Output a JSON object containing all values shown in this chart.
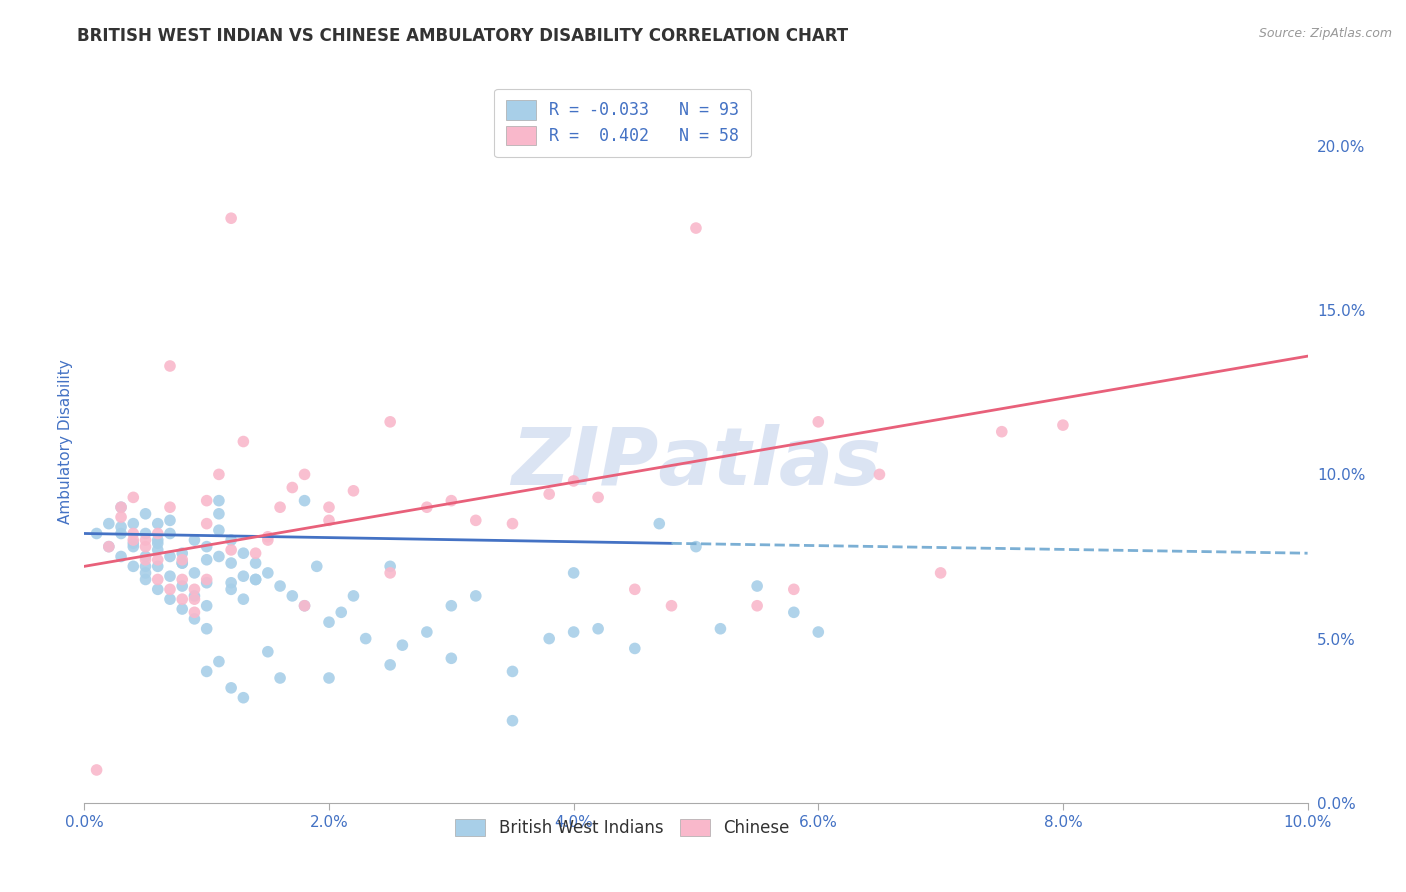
{
  "title": "BRITISH WEST INDIAN VS CHINESE AMBULATORY DISABILITY CORRELATION CHART",
  "source_text": "Source: ZipAtlas.com",
  "ylabel": "Ambulatory Disability",
  "xlim": [
    0.0,
    0.1
  ],
  "ylim": [
    0.0,
    0.22
  ],
  "xtick_vals": [
    0.0,
    0.02,
    0.04,
    0.06,
    0.08,
    0.1
  ],
  "xtick_labels": [
    "0.0%",
    "2.0%",
    "4.0%",
    "6.0%",
    "8.0%",
    "10.0%"
  ],
  "ytick_vals": [
    0.0,
    0.05,
    0.1,
    0.15,
    0.2
  ],
  "ytick_labels_right": [
    "0.0%",
    "5.0%",
    "10.0%",
    "15.0%",
    "20.0%"
  ],
  "legend_label1": "R = -0.033   N = 93",
  "legend_label2": "R =  0.402   N = 58",
  "blue_scatter_color": "#a8cfe8",
  "pink_scatter_color": "#f9b8cb",
  "trend_blue_solid_color": "#4472c4",
  "trend_blue_dash_color": "#7bafd4",
  "trend_pink_color": "#e8607a",
  "background_color": "#ffffff",
  "grid_color": "#d0d0d0",
  "title_color": "#333333",
  "tick_color": "#4472c4",
  "watermark_color": "#cdd9ef",
  "blue_scatter_x": [
    0.001,
    0.002,
    0.002,
    0.003,
    0.003,
    0.004,
    0.004,
    0.004,
    0.005,
    0.005,
    0.005,
    0.005,
    0.006,
    0.006,
    0.006,
    0.006,
    0.007,
    0.007,
    0.007,
    0.007,
    0.008,
    0.008,
    0.008,
    0.009,
    0.009,
    0.009,
    0.01,
    0.01,
    0.01,
    0.01,
    0.011,
    0.011,
    0.011,
    0.012,
    0.012,
    0.012,
    0.013,
    0.013,
    0.014,
    0.014,
    0.015,
    0.016,
    0.017,
    0.018,
    0.019,
    0.02,
    0.021,
    0.022,
    0.023,
    0.025,
    0.026,
    0.028,
    0.03,
    0.032,
    0.035,
    0.038,
    0.04,
    0.042,
    0.045,
    0.047,
    0.05,
    0.052,
    0.055,
    0.058,
    0.06,
    0.003,
    0.004,
    0.005,
    0.006,
    0.007,
    0.008,
    0.009,
    0.01,
    0.011,
    0.012,
    0.013,
    0.014,
    0.003,
    0.005,
    0.006,
    0.008,
    0.01,
    0.011,
    0.012,
    0.013,
    0.015,
    0.016,
    0.018,
    0.02,
    0.025,
    0.03,
    0.035,
    0.04
  ],
  "blue_scatter_y": [
    0.082,
    0.078,
    0.085,
    0.075,
    0.082,
    0.072,
    0.079,
    0.085,
    0.068,
    0.075,
    0.082,
    0.088,
    0.065,
    0.072,
    0.079,
    0.085,
    0.062,
    0.069,
    0.075,
    0.082,
    0.059,
    0.066,
    0.073,
    0.056,
    0.063,
    0.07,
    0.053,
    0.06,
    0.067,
    0.074,
    0.083,
    0.088,
    0.092,
    0.08,
    0.073,
    0.067,
    0.076,
    0.069,
    0.073,
    0.068,
    0.07,
    0.066,
    0.063,
    0.06,
    0.072,
    0.055,
    0.058,
    0.063,
    0.05,
    0.072,
    0.048,
    0.052,
    0.06,
    0.063,
    0.025,
    0.05,
    0.07,
    0.053,
    0.047,
    0.085,
    0.078,
    0.053,
    0.066,
    0.058,
    0.052,
    0.09,
    0.078,
    0.072,
    0.08,
    0.086,
    0.076,
    0.08,
    0.078,
    0.075,
    0.065,
    0.062,
    0.068,
    0.084,
    0.07,
    0.077,
    0.073,
    0.04,
    0.043,
    0.035,
    0.032,
    0.046,
    0.038,
    0.092,
    0.038,
    0.042,
    0.044,
    0.04,
    0.052
  ],
  "pink_scatter_x": [
    0.001,
    0.002,
    0.003,
    0.004,
    0.004,
    0.005,
    0.005,
    0.006,
    0.006,
    0.007,
    0.007,
    0.008,
    0.008,
    0.009,
    0.009,
    0.01,
    0.01,
    0.011,
    0.012,
    0.013,
    0.014,
    0.015,
    0.016,
    0.017,
    0.018,
    0.02,
    0.022,
    0.025,
    0.028,
    0.03,
    0.032,
    0.035,
    0.038,
    0.04,
    0.042,
    0.045,
    0.048,
    0.05,
    0.055,
    0.058,
    0.06,
    0.065,
    0.07,
    0.075,
    0.08,
    0.003,
    0.004,
    0.005,
    0.006,
    0.007,
    0.008,
    0.009,
    0.01,
    0.012,
    0.015,
    0.018,
    0.02,
    0.025
  ],
  "pink_scatter_y": [
    0.01,
    0.078,
    0.087,
    0.082,
    0.093,
    0.074,
    0.08,
    0.068,
    0.074,
    0.065,
    0.133,
    0.062,
    0.068,
    0.058,
    0.065,
    0.085,
    0.092,
    0.1,
    0.077,
    0.11,
    0.076,
    0.081,
    0.09,
    0.096,
    0.1,
    0.086,
    0.095,
    0.116,
    0.09,
    0.092,
    0.086,
    0.085,
    0.094,
    0.098,
    0.093,
    0.065,
    0.06,
    0.175,
    0.06,
    0.065,
    0.116,
    0.1,
    0.07,
    0.113,
    0.115,
    0.09,
    0.08,
    0.078,
    0.082,
    0.09,
    0.074,
    0.062,
    0.068,
    0.178,
    0.08,
    0.06,
    0.09,
    0.07
  ],
  "blue_solid_trend_x": [
    0.0,
    0.048
  ],
  "blue_solid_trend_y": [
    0.082,
    0.079
  ],
  "blue_dash_trend_x": [
    0.048,
    0.1
  ],
  "blue_dash_trend_y": [
    0.079,
    0.076
  ],
  "pink_trend_x": [
    0.0,
    0.1
  ],
  "pink_trend_y": [
    0.072,
    0.136
  ]
}
